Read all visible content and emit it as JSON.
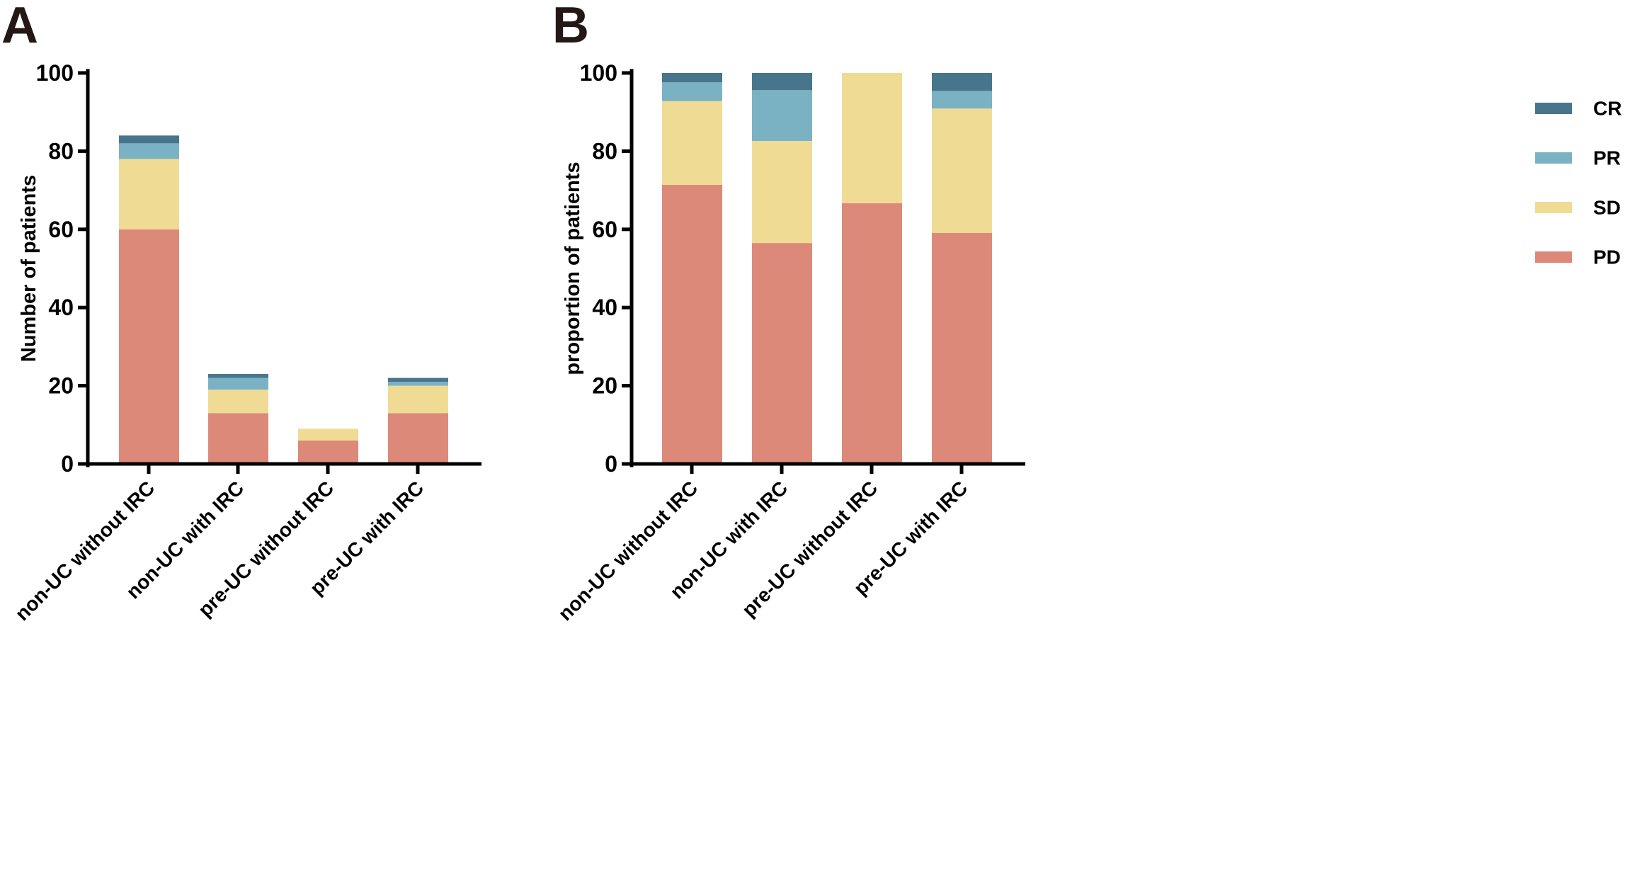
{
  "chart_data": [
    {
      "panel_label": "A",
      "type": "bar",
      "stacked": true,
      "categories": [
        "non-UC without IRC",
        "non-UC with IRC",
        "pre-UC without IRC",
        "pre-UC with IRC"
      ],
      "series": [
        {
          "name": "PD",
          "color": "#dc8979",
          "values": [
            60,
            13,
            6,
            13
          ]
        },
        {
          "name": "SD",
          "color": "#f0db94",
          "values": [
            18,
            6,
            3,
            7
          ]
        },
        {
          "name": "PR",
          "color": "#7ab2c4",
          "values": [
            4,
            3,
            0,
            1
          ]
        },
        {
          "name": "CR",
          "color": "#47758c",
          "values": [
            2,
            1,
            0,
            1
          ]
        }
      ],
      "ylabel": "Number of patients",
      "xlabel": "",
      "ylim": [
        0,
        100
      ],
      "yticks": [
        "0",
        "20",
        "40",
        "60",
        "80",
        "100"
      ]
    },
    {
      "panel_label": "B",
      "type": "bar",
      "stacked": true,
      "categories": [
        "non-UC without IRC",
        "non-UC with IRC",
        "pre-UC without IRC",
        "pre-UC with IRC"
      ],
      "series": [
        {
          "name": "PD",
          "color": "#dc8979",
          "values": [
            71.4,
            56.5,
            66.7,
            59.1
          ]
        },
        {
          "name": "SD",
          "color": "#f0db94",
          "values": [
            21.4,
            26.1,
            33.3,
            31.8
          ]
        },
        {
          "name": "PR",
          "color": "#7ab2c4",
          "values": [
            4.8,
            13.0,
            0,
            4.5
          ]
        },
        {
          "name": "CR",
          "color": "#47758c",
          "values": [
            2.4,
            4.4,
            0,
            4.6
          ]
        }
      ],
      "ylabel": "proportion of patients",
      "xlabel": "",
      "ylim": [
        0,
        100
      ],
      "yticks": [
        "0",
        "20",
        "40",
        "60",
        "80",
        "100"
      ]
    }
  ],
  "legend": {
    "position": "right",
    "items": [
      {
        "name": "CR",
        "color": "#47758c"
      },
      {
        "name": "PR",
        "color": "#7ab2c4"
      },
      {
        "name": "SD",
        "color": "#f0db94"
      },
      {
        "name": "PD",
        "color": "#dc8979"
      }
    ]
  }
}
